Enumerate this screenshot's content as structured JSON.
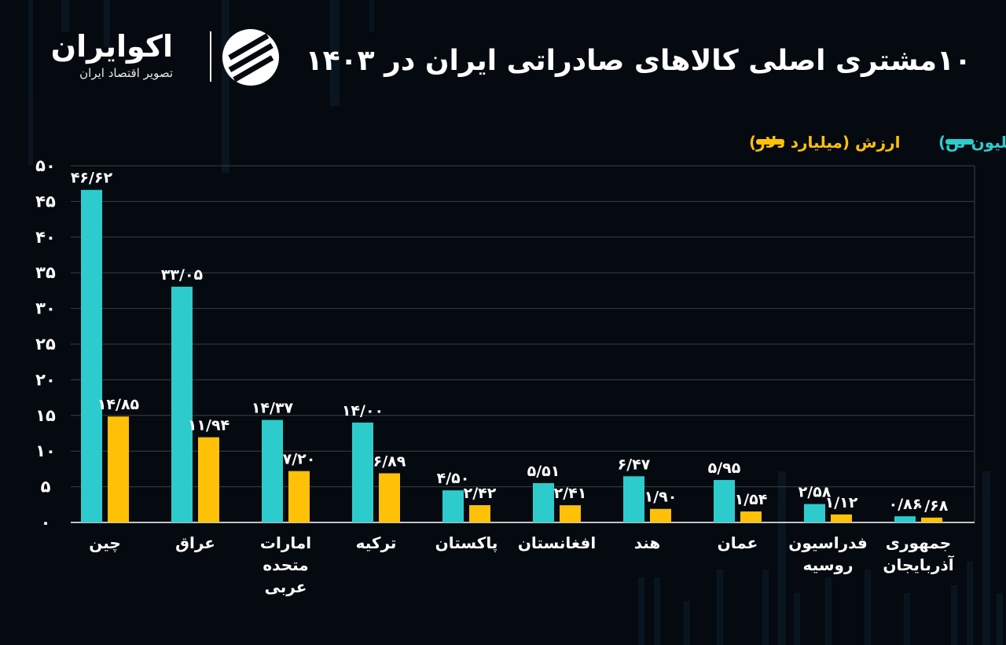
{
  "header": {
    "title": "۱۰مشتری اصلی کالاهای صادراتی ایران در ۱۴۰۳"
  },
  "brand": {
    "name": "اکوایران",
    "subtitle": "تصویر اقتصاد ایران"
  },
  "colors": {
    "background": "#050a10",
    "weight_series": "#2ecbcc",
    "value_series": "#ffc107",
    "gridline": "#3a4048",
    "text": "#ffffff"
  },
  "chart_data": {
    "type": "bar",
    "title": "۱۰مشتری اصلی کالاهای صادراتی ایران در ۱۴۰۳",
    "xlabel": "",
    "ylabel": "",
    "ylim": [
      0,
      50
    ],
    "yticks": [
      0,
      5,
      10,
      15,
      20,
      25,
      30,
      35,
      40,
      45,
      50
    ],
    "ytick_labels": [
      "۰",
      "۵",
      "۱۰",
      "۱۵",
      "۲۰",
      "۲۵",
      "۳۰",
      "۳۵",
      "۴۰",
      "۴۵",
      "۵۰"
    ],
    "grid": true,
    "legend_position": "top-right",
    "categories": [
      [
        "چین"
      ],
      [
        "عراق"
      ],
      [
        "امارات",
        "متحده",
        "عربی"
      ],
      [
        "ترکیه"
      ],
      [
        "پاکستان"
      ],
      [
        "افغانستان"
      ],
      [
        "هند"
      ],
      [
        "عمان"
      ],
      [
        "فدراسیون",
        "روسیه"
      ],
      [
        "جمهوری",
        "آذربایجان"
      ]
    ],
    "series": [
      {
        "name": "وزن (میلیون تن)",
        "color": "#2ecbcc",
        "values": [
          46.62,
          33.05,
          14.37,
          14.0,
          4.5,
          5.51,
          6.47,
          5.95,
          2.58,
          0.86
        ],
        "labels": [
          "۴۶/۶۲",
          "۳۳/۰۵",
          "۱۴/۳۷",
          "۱۴/۰۰",
          "۴/۵۰",
          "۵/۵۱",
          "۶/۴۷",
          "۵/۹۵",
          "۲/۵۸",
          "۰/۸۶"
        ]
      },
      {
        "name": "ارزش (میلیارد دلار)",
        "color": "#ffc107",
        "values": [
          14.85,
          11.94,
          7.2,
          6.89,
          2.42,
          2.41,
          1.9,
          1.54,
          1.12,
          0.68
        ],
        "labels": [
          "۱۴/۸۵",
          "۱۱/۹۴",
          "۷/۲۰",
          "۶/۸۹",
          "۲/۴۲",
          "۲/۴۱",
          "۱/۹۰",
          "۱/۵۴",
          "۱/۱۲",
          "۰/۶۸"
        ]
      }
    ]
  }
}
